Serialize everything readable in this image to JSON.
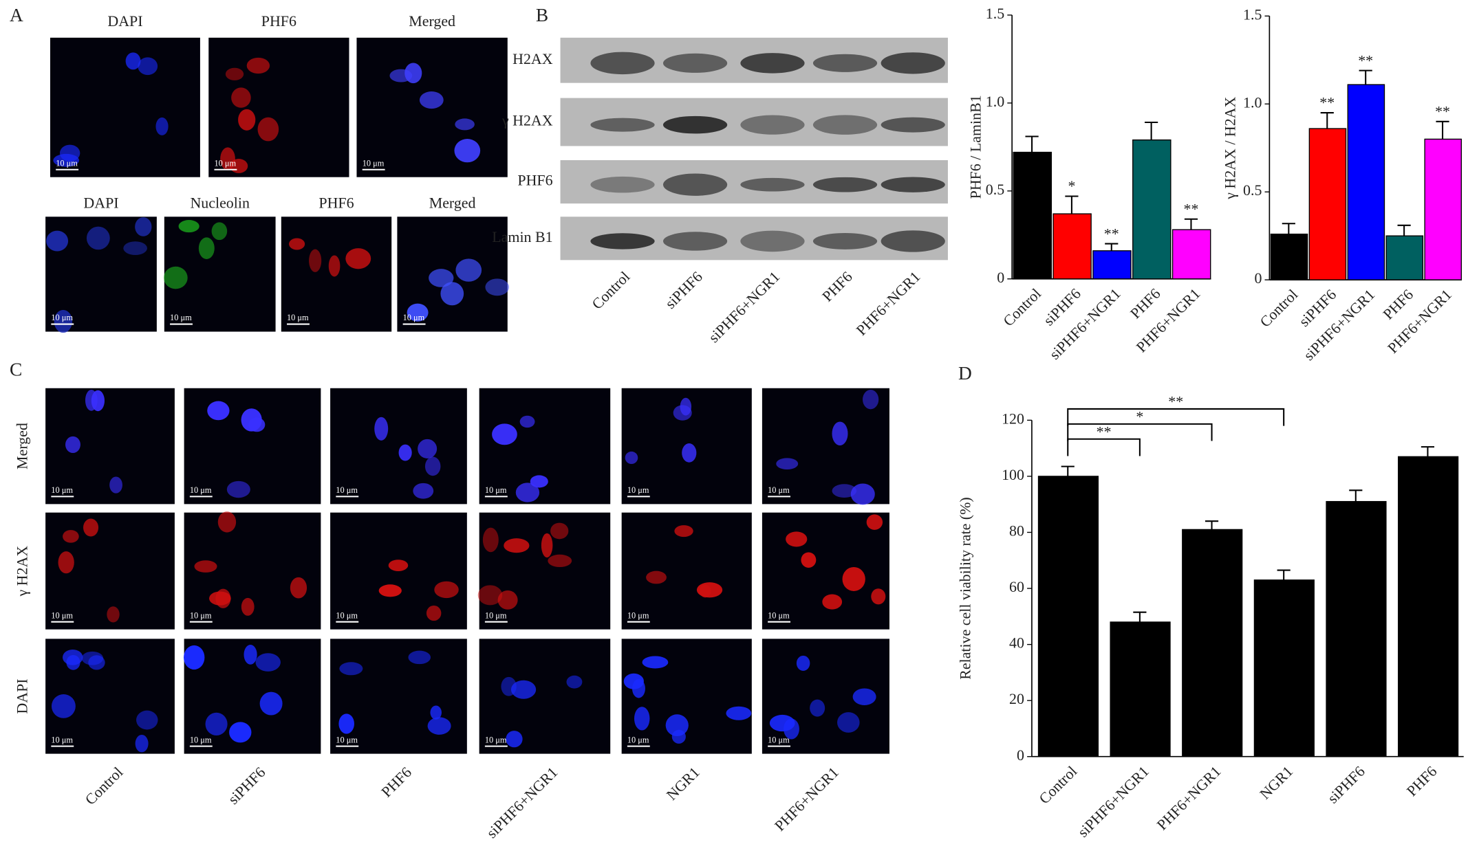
{
  "panels": {
    "A": {
      "letter": "A",
      "top_labels": [
        "DAPI",
        "PHF6",
        "Merged"
      ],
      "bottom_labels": [
        "DAPI",
        "Nucleolin",
        "PHF6",
        "Merged"
      ]
    },
    "B": {
      "letter": "B",
      "blot_rows": [
        "H2AX",
        "γ H2AX",
        "PHF6",
        "Lamin B1"
      ],
      "blot_lanes": [
        "Control",
        "siPHF6",
        "siPHF6+NGR1",
        "PHF6",
        "PHF6+NGR1"
      ]
    },
    "C": {
      "letter": "C",
      "row_labels": [
        "Merged",
        "γ H2AX",
        "DAPI"
      ],
      "column_labels": [
        "Control",
        "siPHF6",
        "PHF6",
        "siPHF6+NGR1",
        "NGR1",
        "PHF6+NGR1"
      ]
    },
    "D": {
      "letter": "D"
    },
    "scale_bar": "10 μm"
  },
  "chart_data": [
    {
      "type": "bar",
      "y_label": "PHF6 / LaminB1",
      "categories": [
        "Control",
        "siPHF6",
        "siPHF6+NGR1",
        "PHF6",
        "PHF6+NGR1"
      ],
      "values": [
        0.72,
        0.37,
        0.16,
        0.79,
        0.28
      ],
      "errors": [
        0.09,
        0.1,
        0.04,
        0.1,
        0.06
      ],
      "colors": [
        "#000000",
        "#ff0000",
        "#0000ff",
        "#006060",
        "#ff00ff"
      ],
      "significance": [
        null,
        "*",
        "**",
        null,
        "**"
      ],
      "ylim": [
        0,
        1.5
      ],
      "yticks": [
        0,
        0.5,
        {
          "value": 1,
          "label": "1.0"
        },
        1.5
      ]
    },
    {
      "type": "bar",
      "y_label": "γ H2AX / H2AX",
      "categories": [
        "Control",
        "siPHF6",
        "siPHF6+NGR1",
        "PHF6",
        "PHF6+NGR1"
      ],
      "values": [
        0.26,
        0.86,
        1.11,
        0.25,
        0.8
      ],
      "errors": [
        0.06,
        0.09,
        0.08,
        0.06,
        0.1
      ],
      "colors": [
        "#000000",
        "#ff0000",
        "#0000ff",
        "#006060",
        "#ff00ff"
      ],
      "significance": [
        null,
        "**",
        "**",
        null,
        "**"
      ],
      "ylim": [
        0,
        1.5
      ],
      "yticks": [
        0,
        0.5,
        {
          "value": 1,
          "label": "1.0"
        },
        1.5
      ]
    },
    {
      "type": "bar",
      "y_label": "Relative cell viability rate (%)",
      "categories": [
        "Control",
        "siPHF6+NGR1",
        "PHF6+NGR1",
        "NGR1",
        "siPHF6",
        "PHF6"
      ],
      "values": [
        100,
        48,
        81,
        63,
        91,
        107
      ],
      "errors": [
        3.5,
        3.5,
        3,
        3.5,
        4,
        3.5
      ],
      "color": "#000000",
      "bracket_labels": [
        null,
        "**",
        "*",
        "**",
        null,
        null
      ],
      "ylim": [
        0,
        120
      ],
      "yticks": [
        0,
        20,
        40,
        60,
        80,
        100,
        120
      ]
    }
  ]
}
